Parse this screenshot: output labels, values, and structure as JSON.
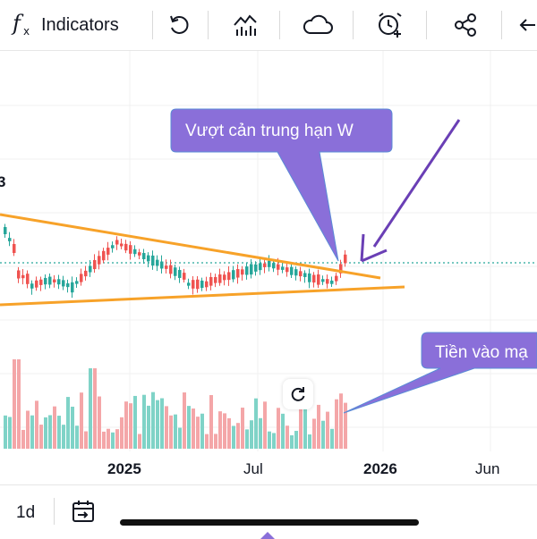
{
  "toolbar": {
    "fx_icon_glyph": "f",
    "fx_sub": "x",
    "indicators_label": "Indicators",
    "icons": [
      "function-icon",
      "undo-icon",
      "compare-chart-icon",
      "cloud-icon",
      "alarm-add-icon",
      "share-icon",
      "arrow-left-icon"
    ]
  },
  "chart": {
    "x_labels": [
      "2025",
      "Jul",
      "2026",
      "Jun"
    ],
    "x_label_bold": [
      "2025",
      "2026"
    ],
    "price_tag": "3",
    "callout_top": "Vượt cản trung hạn W",
    "callout_right": "Tiền vào mạ",
    "colors": {
      "up": "#26a69a",
      "down": "#ef5350",
      "volume_up": "#7fd3c7",
      "volume_down": "#f4a6a8",
      "trendline": "#f7a229",
      "callout_fill": "#8a6fd9",
      "arrow": "#6a3fb5",
      "dotted_line": "#26a69a"
    }
  },
  "chart_data": {
    "type": "candlestick",
    "x_ticks": [
      "2025",
      "Jul",
      "2026",
      "Jun"
    ],
    "annotations": [
      "Vượt cản trung hạn W",
      "Tiền vào mạ"
    ]
  },
  "bottom": {
    "interval": "1d",
    "calendar_icon": "calendar-goto-icon"
  }
}
